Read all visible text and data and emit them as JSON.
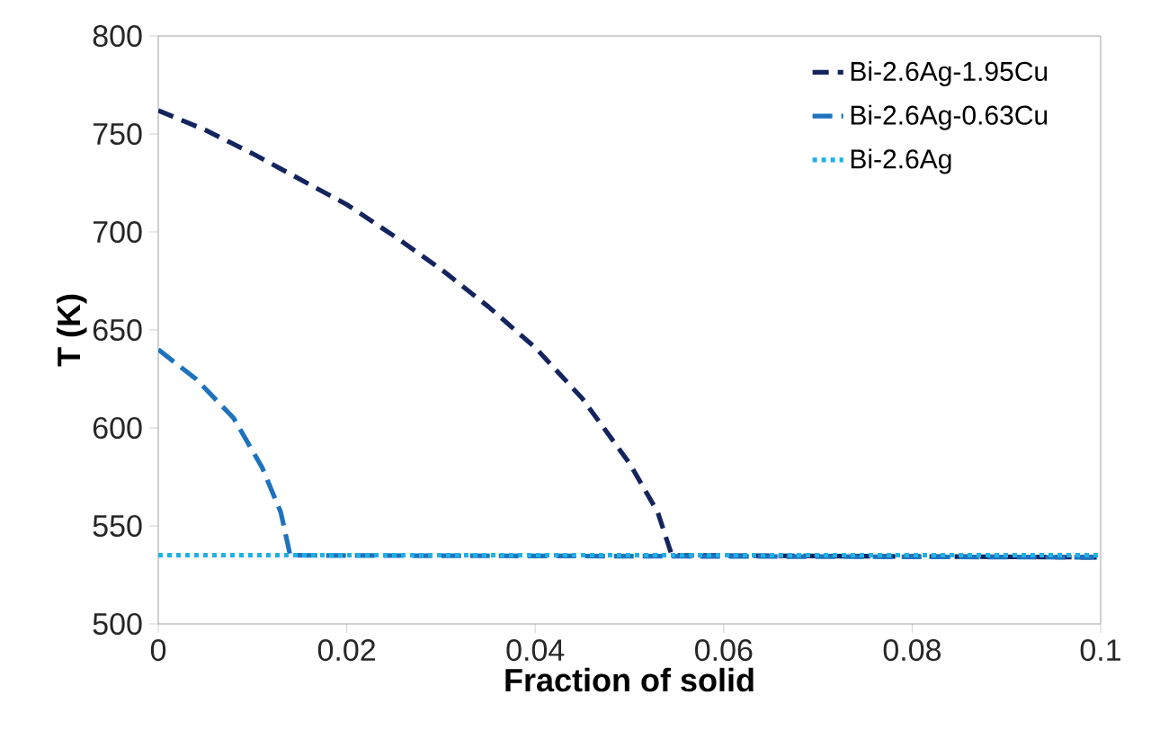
{
  "chart_data": {
    "type": "line",
    "xlabel": "Fraction of solid",
    "ylabel": "T (K)",
    "xlim": [
      0,
      0.1
    ],
    "ylim": [
      500,
      800
    ],
    "xticks": [
      0,
      0.02,
      0.04,
      0.06,
      0.08,
      0.1
    ],
    "yticks": [
      500,
      550,
      600,
      650,
      700,
      750,
      800
    ],
    "grid": false,
    "legend": "top right",
    "marker": "none",
    "series": [
      {
        "name": "Bi-2.6Ag-1.95Cu",
        "color": "#14245e",
        "line_style": "dashed",
        "x": [
          0,
          0.005,
          0.01,
          0.015,
          0.02,
          0.025,
          0.03,
          0.035,
          0.04,
          0.045,
          0.05,
          0.053,
          0.0545,
          0.1
        ],
        "values": [
          762,
          752,
          740,
          727,
          714,
          698,
          681,
          662,
          641,
          615,
          582,
          557,
          535,
          534
        ]
      },
      {
        "name": "Bi-2.6Ag-0.63Cu",
        "color": "#1f72bd",
        "line_style": "dashed",
        "x": [
          0,
          0.004,
          0.008,
          0.011,
          0.013,
          0.014,
          0.1
        ],
        "values": [
          640,
          625,
          605,
          580,
          557,
          535,
          534
        ]
      },
      {
        "name": "Bi-2.6Ag",
        "color": "#1fb1e6",
        "line_style": "dotted",
        "x": [
          0,
          0.1
        ],
        "values": [
          535,
          535
        ]
      }
    ]
  }
}
